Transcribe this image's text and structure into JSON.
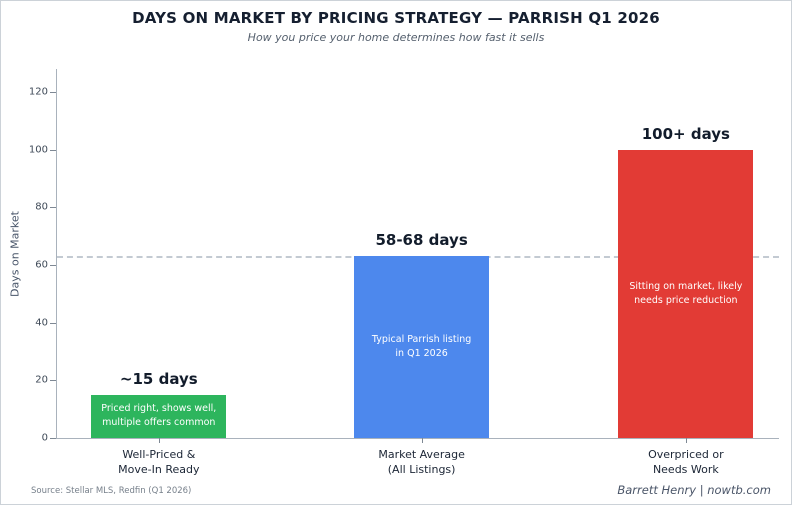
{
  "header": {
    "title": "DAYS ON MARKET BY PRICING STRATEGY — PARRISH Q1 2026",
    "subtitle": "How you price your home determines how fast it sells"
  },
  "footer": {
    "source": "Source: Stellar MLS, Redfin (Q1 2026)",
    "credit": "Barrett Henry | nowtb.com"
  },
  "chart_data": {
    "type": "bar",
    "title": "DAYS ON MARKET BY PRICING STRATEGY — PARRISH Q1 2026",
    "subtitle": "How you price your home determines how fast it sells",
    "xlabel": "",
    "ylabel": "Days on Market",
    "ylim": [
      0,
      128
    ],
    "yticks": [
      0,
      20,
      40,
      60,
      80,
      100,
      120
    ],
    "grid": false,
    "legend": false,
    "reference_line": {
      "value": 63,
      "style": "dashed",
      "color": "#c3cad2"
    },
    "categories": [
      "Well-Priced &\nMove-In Ready",
      "Market Average\n(All Listings)",
      "Overpriced or\nNeeds Work"
    ],
    "values": [
      15,
      63,
      100
    ],
    "bars": [
      {
        "label": "Well-Priced &\nMove-In Ready",
        "value": 15,
        "value_label": "~15 days",
        "annotation": "Priced right, shows well,\nmultiple offers common",
        "color": "#2db55d"
      },
      {
        "label": "Market Average\n(All Listings)",
        "value": 63,
        "value_label": "58-68 days",
        "annotation": "Typical Parrish listing\nin Q1 2026",
        "color": "#4d88ed"
      },
      {
        "label": "Overpriced or\nNeeds Work",
        "value": 100,
        "value_label": "100+ days",
        "annotation": "Sitting on market, likely\nneeds price reduction",
        "color": "#e23b35"
      }
    ]
  }
}
